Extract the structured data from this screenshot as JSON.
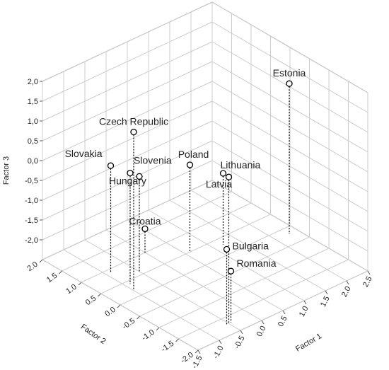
{
  "chart_data": {
    "type": "scatter3d",
    "categories": [
      "Estonia",
      "Czech Republic",
      "Slovakia",
      "Slovenia",
      "Hungary",
      "Croatia",
      "Poland",
      "Lithuania",
      "Latvia",
      "Bulgaria",
      "Romania"
    ],
    "x": [
      2.3,
      -1.0,
      -0.9,
      -0.5,
      -0.9,
      0.0,
      0.6,
      -0.5,
      1.2,
      -0.55,
      -0.45
    ],
    "y": [
      -0.2,
      0.2,
      0.9,
      0.6,
      0.4,
      1.0,
      0.5,
      -1.7,
      0.3,
      -1.7,
      -1.7
    ],
    "z": [
      1.3,
      1.5,
      0.2,
      -0.1,
      0.3,
      -1.9,
      -0.3,
      1.2,
      -0.7,
      -0.6,
      -1.2
    ],
    "xlabel": "Factor 1",
    "ylabel": "Factor 2",
    "zlabel": "Factor 3",
    "xlim": [
      -1.5,
      2.5
    ],
    "ylim": [
      -2,
      2
    ],
    "zlim": [
      -2.5,
      2
    ],
    "xticks": [
      {
        "value": -1.5,
        "label": "-1.5"
      },
      {
        "value": -1,
        "label": "-1.0"
      },
      {
        "value": -0.5,
        "label": "-0.5"
      },
      {
        "value": 0,
        "label": "0.0"
      },
      {
        "value": 0.5,
        "label": "0.5"
      },
      {
        "value": 1,
        "label": "1.0"
      },
      {
        "value": 1.5,
        "label": "1.5"
      },
      {
        "value": 2,
        "label": "2.0"
      },
      {
        "value": 2.5,
        "label": "2.5"
      }
    ],
    "yticks": [
      {
        "value": -2,
        "label": "-2.0"
      },
      {
        "value": -1.5,
        "label": "-1.5"
      },
      {
        "value": -1,
        "label": "-1.0"
      },
      {
        "value": -0.5,
        "label": "-0.5"
      },
      {
        "value": 0,
        "label": "0.0"
      },
      {
        "value": 0.5,
        "label": "0.5"
      },
      {
        "value": 1,
        "label": "1.0"
      },
      {
        "value": 1.5,
        "label": "1.5"
      },
      {
        "value": 2,
        "label": "2.0"
      }
    ],
    "zticks": [
      {
        "value": -2,
        "label": "-2,0"
      },
      {
        "value": -1.5,
        "label": "-1,5"
      },
      {
        "value": -1,
        "label": "-1,0"
      },
      {
        "value": -0.5,
        "label": "-0,5"
      },
      {
        "value": 0,
        "label": "0,0"
      },
      {
        "value": 0.5,
        "label": "0,5"
      },
      {
        "value": 1,
        "label": "1,0"
      },
      {
        "value": 1.5,
        "label": "1,5"
      },
      {
        "value": 2,
        "label": "2,0"
      }
    ],
    "grid": true
  }
}
